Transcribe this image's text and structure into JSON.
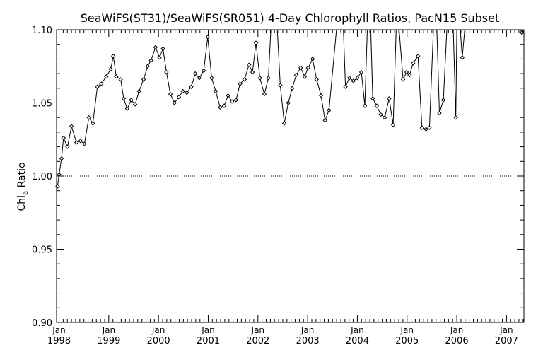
{
  "chart_data": {
    "type": "line",
    "title": "SeaWiFS(ST31)/SeaWiFS(SR051) 4-Day Chlorophyll Ratios, PacN15 Subset",
    "ylabel_main": "Chl",
    "ylabel_sub": "a",
    "ylabel_tail": " Ratio",
    "xlabel": "",
    "ylim": [
      0.9,
      1.1
    ],
    "xlim": [
      1997.95,
      2007.35
    ],
    "yticks": [
      "0.90",
      "0.95",
      "1.00",
      "1.05",
      "1.10"
    ],
    "xticks": [
      {
        "month": "Jan",
        "year": "1998",
        "x": 1998.0
      },
      {
        "month": "Jan",
        "year": "1999",
        "x": 1999.0
      },
      {
        "month": "Jan",
        "year": "2000",
        "x": 2000.0
      },
      {
        "month": "Jan",
        "year": "2001",
        "x": 2001.0
      },
      {
        "month": "Jan",
        "year": "2002",
        "x": 2002.0
      },
      {
        "month": "Jan",
        "year": "2003",
        "x": 2003.0
      },
      {
        "month": "Jan",
        "year": "2004",
        "x": 2004.0
      },
      {
        "month": "Jan",
        "year": "2005",
        "x": 2005.0
      },
      {
        "month": "Jan",
        "year": "2006",
        "x": 2006.0
      },
      {
        "month": "Jan",
        "year": "2007",
        "x": 2007.0
      }
    ],
    "reference_line": 1.0,
    "series": [
      {
        "points": [
          [
            1997.97,
            0.993
          ],
          [
            1998.0,
            1.001
          ],
          [
            1998.05,
            1.012
          ],
          [
            1998.09,
            1.026
          ],
          [
            1998.17,
            1.02
          ],
          [
            1998.25,
            1.034
          ],
          [
            1998.35,
            1.023
          ],
          [
            1998.43,
            1.024
          ],
          [
            1998.51,
            1.022
          ],
          [
            1998.6,
            1.04
          ],
          [
            1998.68,
            1.036
          ],
          [
            1998.77,
            1.061
          ],
          [
            1998.85,
            1.063
          ],
          [
            1998.95,
            1.068
          ],
          [
            1999.04,
            1.073
          ],
          [
            1999.09,
            1.082
          ],
          [
            1999.15,
            1.068
          ],
          [
            1999.24,
            1.066
          ],
          [
            1999.3,
            1.053
          ],
          [
            1999.37,
            1.046
          ],
          [
            1999.45,
            1.052
          ],
          [
            1999.53,
            1.049
          ],
          [
            1999.61,
            1.058
          ],
          [
            1999.7,
            1.066
          ],
          [
            1999.78,
            1.075
          ],
          [
            1999.85,
            1.079
          ],
          [
            1999.94,
            1.088
          ],
          [
            2000.02,
            1.081
          ],
          [
            2000.09,
            1.087
          ],
          [
            2000.16,
            1.071
          ],
          [
            2000.24,
            1.056
          ],
          [
            2000.32,
            1.05
          ],
          [
            2000.41,
            1.054
          ],
          [
            2000.49,
            1.058
          ],
          [
            2000.57,
            1.057
          ],
          [
            2000.66,
            1.061
          ],
          [
            2000.74,
            1.07
          ],
          [
            2000.82,
            1.067
          ],
          [
            2000.91,
            1.072
          ],
          [
            2000.99,
            1.095
          ],
          [
            2001.07,
            1.067
          ],
          [
            2001.15,
            1.058
          ],
          [
            2001.24,
            1.047
          ],
          [
            2001.32,
            1.048
          ],
          [
            2001.4,
            1.055
          ],
          [
            2001.48,
            1.051
          ],
          [
            2001.56,
            1.052
          ],
          [
            2001.64,
            1.063
          ],
          [
            2001.73,
            1.066
          ],
          [
            2001.82,
            1.076
          ],
          [
            2001.89,
            1.071
          ],
          [
            2001.96,
            1.091
          ],
          [
            2002.04,
            1.067
          ],
          [
            2002.13,
            1.056
          ],
          [
            2002.21,
            1.067
          ],
          [
            2002.26,
            1.1
          ],
          [
            2002.39,
            1.1
          ],
          [
            2002.45,
            1.062
          ],
          [
            2002.53,
            1.036
          ],
          [
            2002.61,
            1.05
          ],
          [
            2002.69,
            1.06
          ],
          [
            2002.77,
            1.069
          ],
          [
            2002.86,
            1.074
          ],
          [
            2002.94,
            1.068
          ],
          [
            2003.01,
            1.074
          ],
          [
            2003.1,
            1.08
          ],
          [
            2003.18,
            1.066
          ],
          [
            2003.27,
            1.055
          ],
          [
            2003.35,
            1.038
          ],
          [
            2003.43,
            1.045
          ],
          [
            2003.58,
            1.1
          ],
          [
            2003.72,
            1.1
          ],
          [
            2003.76,
            1.061
          ],
          [
            2003.84,
            1.067
          ],
          [
            2003.92,
            1.065
          ],
          [
            2004.0,
            1.067
          ],
          [
            2004.08,
            1.071
          ],
          [
            2004.15,
            1.048
          ],
          [
            2004.2,
            1.1
          ],
          [
            2004.27,
            1.1
          ],
          [
            2004.31,
            1.053
          ],
          [
            2004.39,
            1.048
          ],
          [
            2004.47,
            1.042
          ],
          [
            2004.55,
            1.04
          ],
          [
            2004.64,
            1.053
          ],
          [
            2004.72,
            1.035
          ],
          [
            2004.78,
            1.1
          ],
          [
            2004.84,
            1.1
          ],
          [
            2004.92,
            1.066
          ],
          [
            2004.99,
            1.071
          ],
          [
            2005.05,
            1.069
          ],
          [
            2005.12,
            1.077
          ],
          [
            2005.22,
            1.082
          ],
          [
            2005.3,
            1.033
          ],
          [
            2005.38,
            1.032
          ],
          [
            2005.45,
            1.033
          ],
          [
            2005.53,
            1.1
          ],
          [
            2005.6,
            1.1
          ],
          [
            2005.65,
            1.043
          ],
          [
            2005.73,
            1.052
          ],
          [
            2005.8,
            1.1
          ],
          [
            2005.93,
            1.1
          ],
          [
            2005.98,
            1.04
          ],
          [
            2006.0,
            1.1
          ],
          [
            2006.07,
            1.1
          ],
          [
            2006.11,
            1.081
          ],
          [
            2006.16,
            1.1
          ],
          [
            2007.28,
            1.1
          ],
          [
            2007.31,
            1.098
          ]
        ]
      }
    ]
  }
}
